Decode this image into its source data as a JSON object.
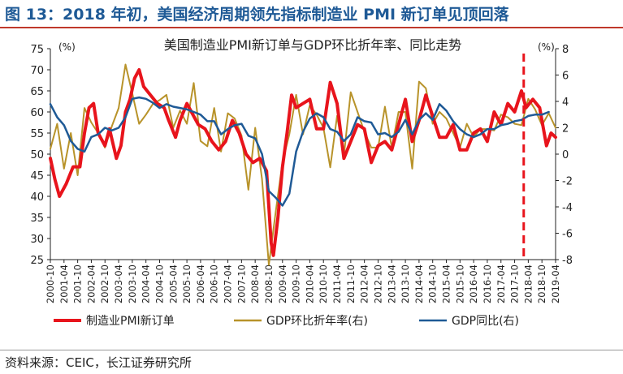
{
  "figure_title": "图 13：2018 年初，美国经济周期领先指标制造业 PMI 新订单见顶回落",
  "source": "资料来源：CEIC，长江证券研究所",
  "colors": {
    "title": "#1f5a96",
    "title_rule": "#c0392b",
    "pmi": "#e8141c",
    "gdp_annualized": "#b8932a",
    "gdp_yoy": "#1f5a96",
    "marker": "#e8141c"
  },
  "chart_data": {
    "type": "line",
    "title": "美国制造业PMI新订单与GDP环比折年率、同比走势",
    "left_unit": "(%)",
    "right_unit": "(%)",
    "ylim_left": [
      25,
      75
    ],
    "ylim_right": [
      -8,
      8
    ],
    "yticks_left": [
      25,
      30,
      35,
      40,
      45,
      50,
      55,
      60,
      65,
      70,
      75
    ],
    "yticks_right": [
      -8,
      -6,
      -4,
      -2,
      0,
      2,
      4,
      6,
      8
    ],
    "x_range": [
      "2000-10",
      "2019-04"
    ],
    "x_tick_labels": [
      "2000-10",
      "2001-04",
      "2001-10",
      "2002-04",
      "2002-10",
      "2003-04",
      "2003-10",
      "2004-04",
      "2004-10",
      "2005-04",
      "2005-10",
      "2006-04",
      "2006-10",
      "2007-04",
      "2007-10",
      "2008-04",
      "2008-10",
      "2009-04",
      "2009-10",
      "2010-04",
      "2010-10",
      "2011-04",
      "2011-10",
      "2012-04",
      "2012-10",
      "2013-04",
      "2013-10",
      "2014-04",
      "2014-10",
      "2015-04",
      "2015-10",
      "2016-04",
      "2016-10",
      "2017-04",
      "2017-10",
      "2018-04",
      "2018-10",
      "2019-04"
    ],
    "marker_x": "2018-02",
    "legend_position": "bottom",
    "grid": false,
    "series": [
      {
        "name": "制造业PMI新订单",
        "axis": "left",
        "points": [
          [
            "2000-10",
            49
          ],
          [
            "2000-12",
            44
          ],
          [
            "2001-02",
            40
          ],
          [
            "2001-05",
            43
          ],
          [
            "2001-08",
            47
          ],
          [
            "2001-11",
            47
          ],
          [
            "2002-01",
            55
          ],
          [
            "2002-03",
            61
          ],
          [
            "2002-05",
            62
          ],
          [
            "2002-07",
            55
          ],
          [
            "2002-10",
            52
          ],
          [
            "2002-12",
            56
          ],
          [
            "2003-03",
            49
          ],
          [
            "2003-05",
            52
          ],
          [
            "2003-07",
            60
          ],
          [
            "2003-09",
            63
          ],
          [
            "2003-11",
            68
          ],
          [
            "2004-01",
            70
          ],
          [
            "2004-03",
            66
          ],
          [
            "2004-06",
            64
          ],
          [
            "2004-09",
            62
          ],
          [
            "2004-12",
            61
          ],
          [
            "2005-02",
            58
          ],
          [
            "2005-05",
            54
          ],
          [
            "2005-07",
            58
          ],
          [
            "2005-10",
            62
          ],
          [
            "2005-12",
            60
          ],
          [
            "2006-03",
            57
          ],
          [
            "2006-06",
            56
          ],
          [
            "2006-09",
            53
          ],
          [
            "2006-12",
            51
          ],
          [
            "2007-03",
            53
          ],
          [
            "2007-06",
            58
          ],
          [
            "2007-09",
            55
          ],
          [
            "2007-12",
            50
          ],
          [
            "2008-03",
            48
          ],
          [
            "2008-06",
            49
          ],
          [
            "2008-09",
            46
          ],
          [
            "2008-11",
            29
          ],
          [
            "2008-12",
            26
          ],
          [
            "2009-02",
            35
          ],
          [
            "2009-04",
            47
          ],
          [
            "2009-06",
            55
          ],
          [
            "2009-08",
            64
          ],
          [
            "2009-10",
            61
          ],
          [
            "2010-01",
            62
          ],
          [
            "2010-04",
            63
          ],
          [
            "2010-07",
            56
          ],
          [
            "2010-10",
            56
          ],
          [
            "2011-01",
            67
          ],
          [
            "2011-04",
            62
          ],
          [
            "2011-07",
            49
          ],
          [
            "2011-10",
            53
          ],
          [
            "2012-01",
            57
          ],
          [
            "2012-04",
            56
          ],
          [
            "2012-07",
            48
          ],
          [
            "2012-10",
            52
          ],
          [
            "2013-01",
            53
          ],
          [
            "2013-04",
            51
          ],
          [
            "2013-07",
            57
          ],
          [
            "2013-10",
            63
          ],
          [
            "2014-01",
            53
          ],
          [
            "2014-04",
            58
          ],
          [
            "2014-07",
            64
          ],
          [
            "2014-10",
            59
          ],
          [
            "2015-01",
            54
          ],
          [
            "2015-04",
            54
          ],
          [
            "2015-07",
            57
          ],
          [
            "2015-10",
            51
          ],
          [
            "2016-01",
            51
          ],
          [
            "2016-04",
            55
          ],
          [
            "2016-07",
            56
          ],
          [
            "2016-10",
            53
          ],
          [
            "2017-01",
            60
          ],
          [
            "2017-04",
            57
          ],
          [
            "2017-07",
            62
          ],
          [
            "2017-10",
            60
          ],
          [
            "2018-01",
            65
          ],
          [
            "2018-03",
            61
          ],
          [
            "2018-06",
            63
          ],
          [
            "2018-09",
            61
          ],
          [
            "2018-12",
            52
          ],
          [
            "2019-02",
            55
          ],
          [
            "2019-04",
            54
          ]
        ]
      },
      {
        "name": "GDP环比折年率(右)",
        "axis": "right",
        "points": [
          [
            "2000-10",
            0.4
          ],
          [
            "2001-01",
            2.3
          ],
          [
            "2001-04",
            -1.1
          ],
          [
            "2001-07",
            1.6
          ],
          [
            "2001-10",
            -1.6
          ],
          [
            "2002-01",
            3.5
          ],
          [
            "2002-04",
            2.4
          ],
          [
            "2002-07",
            1.6
          ],
          [
            "2002-10",
            0.5
          ],
          [
            "2003-01",
            2.1
          ],
          [
            "2003-04",
            3.5
          ],
          [
            "2003-07",
            6.8
          ],
          [
            "2003-10",
            4.6
          ],
          [
            "2004-01",
            2.3
          ],
          [
            "2004-04",
            3.0
          ],
          [
            "2004-07",
            3.8
          ],
          [
            "2004-10",
            4.1
          ],
          [
            "2005-01",
            4.5
          ],
          [
            "2005-04",
            2.0
          ],
          [
            "2005-07",
            3.3
          ],
          [
            "2005-10",
            2.3
          ],
          [
            "2006-01",
            5.4
          ],
          [
            "2006-04",
            1.0
          ],
          [
            "2006-07",
            0.6
          ],
          [
            "2006-10",
            3.5
          ],
          [
            "2007-01",
            0.2
          ],
          [
            "2007-04",
            3.1
          ],
          [
            "2007-07",
            2.7
          ],
          [
            "2007-10",
            1.4
          ],
          [
            "2008-01",
            -2.7
          ],
          [
            "2008-04",
            2.0
          ],
          [
            "2008-07",
            -1.9
          ],
          [
            "2008-10",
            -8.4
          ],
          [
            "2009-01",
            -4.4
          ],
          [
            "2009-04",
            -0.6
          ],
          [
            "2009-07",
            1.5
          ],
          [
            "2009-10",
            4.5
          ],
          [
            "2010-01",
            1.5
          ],
          [
            "2010-04",
            3.7
          ],
          [
            "2010-07",
            3.0
          ],
          [
            "2010-10",
            2.0
          ],
          [
            "2011-01",
            -1.0
          ],
          [
            "2011-04",
            2.9
          ],
          [
            "2011-07",
            -0.1
          ],
          [
            "2011-10",
            4.7
          ],
          [
            "2012-01",
            3.2
          ],
          [
            "2012-04",
            1.7
          ],
          [
            "2012-07",
            0.5
          ],
          [
            "2012-10",
            0.5
          ],
          [
            "2013-01",
            3.6
          ],
          [
            "2013-04",
            0.5
          ],
          [
            "2013-07",
            3.2
          ],
          [
            "2013-10",
            3.2
          ],
          [
            "2014-01",
            -1.1
          ],
          [
            "2014-04",
            5.5
          ],
          [
            "2014-07",
            5.0
          ],
          [
            "2014-10",
            2.3
          ],
          [
            "2015-01",
            3.2
          ],
          [
            "2015-04",
            2.7
          ],
          [
            "2015-07",
            1.6
          ],
          [
            "2015-10",
            0.5
          ],
          [
            "2016-01",
            2.3
          ],
          [
            "2016-04",
            1.3
          ],
          [
            "2016-07",
            1.9
          ],
          [
            "2016-10",
            1.9
          ],
          [
            "2017-01",
            1.8
          ],
          [
            "2017-04",
            3.0
          ],
          [
            "2017-07",
            2.8
          ],
          [
            "2017-10",
            2.3
          ],
          [
            "2018-01",
            2.2
          ],
          [
            "2018-04",
            4.2
          ],
          [
            "2018-07",
            3.4
          ],
          [
            "2018-10",
            2.2
          ],
          [
            "2019-01",
            3.1
          ],
          [
            "2019-04",
            2.0
          ]
        ]
      },
      {
        "name": "GDP同比(右)",
        "axis": "right",
        "points": [
          [
            "2000-10",
            3.8
          ],
          [
            "2001-01",
            2.8
          ],
          [
            "2001-04",
            2.2
          ],
          [
            "2001-07",
            1.0
          ],
          [
            "2001-10",
            0.4
          ],
          [
            "2002-01",
            0.2
          ],
          [
            "2002-04",
            1.3
          ],
          [
            "2002-07",
            1.5
          ],
          [
            "2002-10",
            2.0
          ],
          [
            "2003-01",
            1.8
          ],
          [
            "2003-04",
            2.0
          ],
          [
            "2003-07",
            2.8
          ],
          [
            "2003-10",
            4.2
          ],
          [
            "2004-01",
            4.3
          ],
          [
            "2004-04",
            4.2
          ],
          [
            "2004-07",
            3.9
          ],
          [
            "2004-10",
            3.5
          ],
          [
            "2005-01",
            3.8
          ],
          [
            "2005-04",
            3.6
          ],
          [
            "2005-07",
            3.5
          ],
          [
            "2005-10",
            3.4
          ],
          [
            "2006-01",
            3.2
          ],
          [
            "2006-04",
            3.0
          ],
          [
            "2006-07",
            2.5
          ],
          [
            "2006-10",
            2.5
          ],
          [
            "2007-01",
            1.5
          ],
          [
            "2007-04",
            1.9
          ],
          [
            "2007-07",
            2.2
          ],
          [
            "2007-10",
            2.3
          ],
          [
            "2008-01",
            1.4
          ],
          [
            "2008-04",
            1.2
          ],
          [
            "2008-07",
            0.0
          ],
          [
            "2008-10",
            -2.8
          ],
          [
            "2009-01",
            -3.3
          ],
          [
            "2009-04",
            -3.9
          ],
          [
            "2009-07",
            -3.0
          ],
          [
            "2009-10",
            0.2
          ],
          [
            "2010-01",
            1.7
          ],
          [
            "2010-04",
            2.7
          ],
          [
            "2010-07",
            3.1
          ],
          [
            "2010-10",
            2.8
          ],
          [
            "2011-01",
            1.9
          ],
          [
            "2011-04",
            1.7
          ],
          [
            "2011-07",
            1.0
          ],
          [
            "2011-10",
            1.5
          ],
          [
            "2012-01",
            2.8
          ],
          [
            "2012-04",
            2.5
          ],
          [
            "2012-07",
            2.4
          ],
          [
            "2012-10",
            1.5
          ],
          [
            "2013-01",
            1.6
          ],
          [
            "2013-04",
            1.3
          ],
          [
            "2013-07",
            1.7
          ],
          [
            "2013-10",
            2.6
          ],
          [
            "2014-01",
            1.5
          ],
          [
            "2014-04",
            2.6
          ],
          [
            "2014-07",
            3.1
          ],
          [
            "2014-10",
            2.6
          ],
          [
            "2015-01",
            3.8
          ],
          [
            "2015-04",
            3.3
          ],
          [
            "2015-07",
            2.5
          ],
          [
            "2015-10",
            1.9
          ],
          [
            "2016-01",
            1.5
          ],
          [
            "2016-04",
            1.3
          ],
          [
            "2016-07",
            1.5
          ],
          [
            "2016-10",
            1.9
          ],
          [
            "2017-01",
            1.9
          ],
          [
            "2017-04",
            2.2
          ],
          [
            "2017-07",
            2.3
          ],
          [
            "2017-10",
            2.5
          ],
          [
            "2018-01",
            2.6
          ],
          [
            "2018-04",
            2.9
          ],
          [
            "2018-07",
            3.0
          ],
          [
            "2018-10",
            3.0
          ],
          [
            "2019-01",
            3.2
          ]
        ]
      }
    ]
  }
}
